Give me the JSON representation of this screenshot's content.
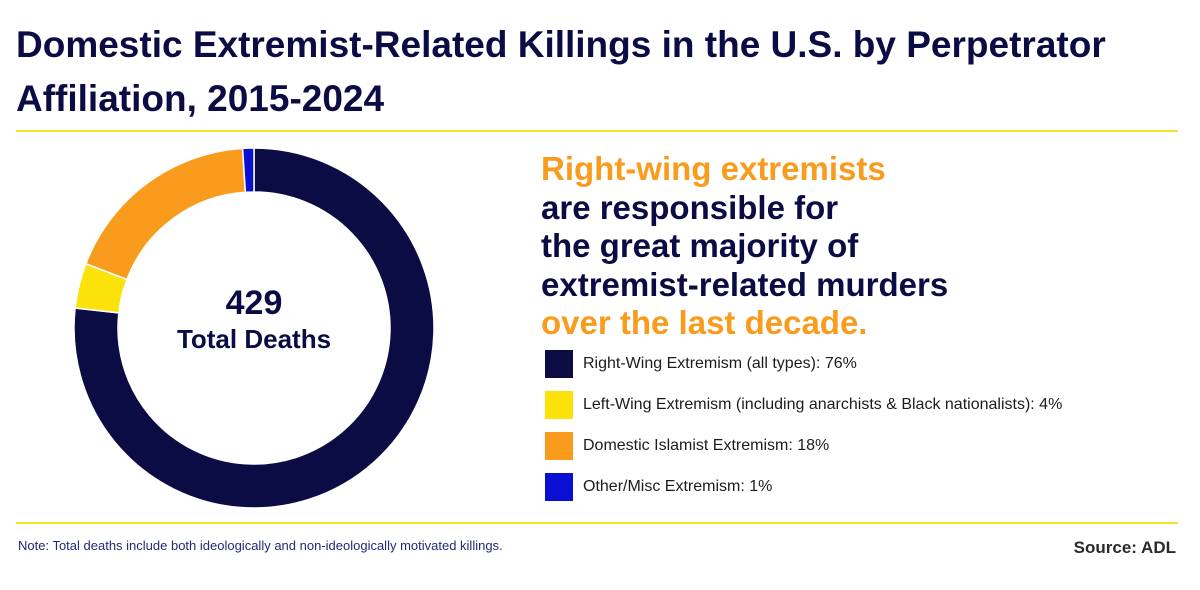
{
  "chart_data": {
    "type": "pie",
    "variant": "donut",
    "title": "Domestic Extremist-Related Killings in the U.S. by Perpetrator Affiliation, 2015-2024",
    "center_value": "429",
    "center_label": "Total Deaths",
    "categories": [
      "Right-Wing Extremism (all types): 76%",
      "Left-Wing Extremism (including anarchists & Black nationalists): 4%",
      "Domestic Islamist Extremism: 18%",
      "Other/Misc Extremism: 1%"
    ],
    "values": [
      76,
      4,
      18,
      1
    ],
    "colors": [
      "#0c0c45",
      "#fbe20a",
      "#f99b1c",
      "#0a10d2"
    ],
    "legend_position": "right"
  },
  "headline": {
    "line1": "Right-wing extremists",
    "line2": "are responsible for",
    "line3": "the great majority of",
    "line4": "extremist-related murders",
    "line5": "over the last decade."
  },
  "footer": {
    "note": "Note: Total deaths include both ideologically and non-ideologically motivated killings.",
    "source": "Source: ADL"
  },
  "colors": {
    "title": "#0c0c45",
    "accent_rule": "#f6e226",
    "headline_orange": "#f99b1c",
    "headline_navy": "#0c0c45"
  }
}
